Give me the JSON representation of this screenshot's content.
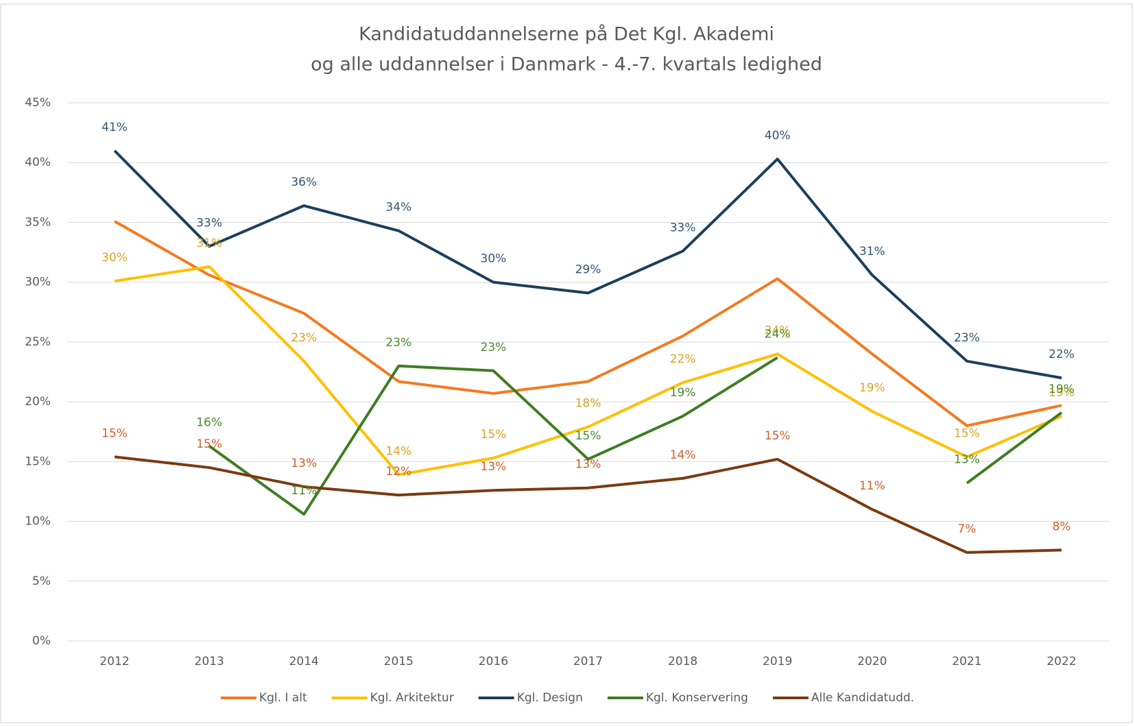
{
  "chart_data": {
    "type": "line",
    "title": [
      "Kandidatuddannelserne på Det Kgl. Akademi",
      "og alle uddannelser i Danmark - 4.-7. kvartals ledighed"
    ],
    "categories": [
      "2012",
      "2013",
      "2014",
      "2015",
      "2016",
      "2017",
      "2018",
      "2019",
      "2020",
      "2021",
      "2022"
    ],
    "series": [
      {
        "name": "Kgl. I alt",
        "color": "#f47a20",
        "values": [
          35.1,
          30.6,
          27.4,
          21.7,
          20.7,
          21.7,
          25.5,
          30.3,
          24.0,
          18.0,
          19.7
        ]
      },
      {
        "name": "Kgl. Arkitektur",
        "color": "#ffc000",
        "label_color": "#d9a520",
        "values": [
          30.1,
          31.3,
          23.4,
          13.9,
          15.3,
          17.9,
          21.6,
          24.0,
          19.2,
          15.4,
          18.8
        ],
        "value_labels": [
          "30%",
          "31%",
          "23%",
          "14%",
          "15%",
          "18%",
          "22%",
          "24%",
          "19%",
          "15%",
          "19%"
        ]
      },
      {
        "name": "Kgl. Design",
        "color": "#1b3f5c",
        "label_color": "#2f5472",
        "values": [
          41.0,
          33.0,
          36.4,
          34.3,
          30.0,
          29.1,
          32.6,
          40.3,
          30.6,
          23.4,
          22.0
        ],
        "value_labels": [
          "41%",
          "33%",
          "36%",
          "34%",
          "30%",
          "29%",
          "33%",
          "40%",
          "31%",
          "23%",
          "22%"
        ]
      },
      {
        "name": "Kgl. Konservering",
        "color": "#3e7d22",
        "label_color": "#4a8a2a",
        "values": [
          null,
          16.3,
          10.6,
          23.0,
          22.6,
          15.2,
          18.8,
          23.7,
          null,
          13.2,
          19.1
        ],
        "value_labels": [
          null,
          "16%",
          "11%",
          "23%",
          "23%",
          "15%",
          "19%",
          "24%",
          null,
          "13%",
          "19%"
        ]
      },
      {
        "name": "Alle Kandidatudd.",
        "color": "#7b3a10",
        "label_color": "#d0602a",
        "values": [
          15.4,
          14.5,
          12.9,
          12.2,
          12.6,
          12.8,
          13.6,
          15.2,
          11.0,
          7.4,
          7.6
        ],
        "value_labels": [
          "15%",
          "15%",
          "13%",
          "12%",
          "13%",
          "13%",
          "14%",
          "15%",
          "11%",
          "7%",
          "8%"
        ]
      }
    ],
    "ylim": [
      0,
      45
    ],
    "yticks": [
      {
        "value": 0,
        "label": "0%"
      },
      {
        "value": 5,
        "label": "5%"
      },
      {
        "value": 10,
        "label": "10%"
      },
      {
        "value": 15,
        "label": "15%"
      },
      {
        "value": 20,
        "label": "20%"
      },
      {
        "value": 25,
        "label": "25%"
      },
      {
        "value": 30,
        "label": "30%"
      },
      {
        "value": 35,
        "label": "35%"
      },
      {
        "value": 40,
        "label": "40%"
      },
      {
        "value": 45,
        "label": "45%"
      }
    ],
    "grid": true,
    "legend": "bottom"
  }
}
